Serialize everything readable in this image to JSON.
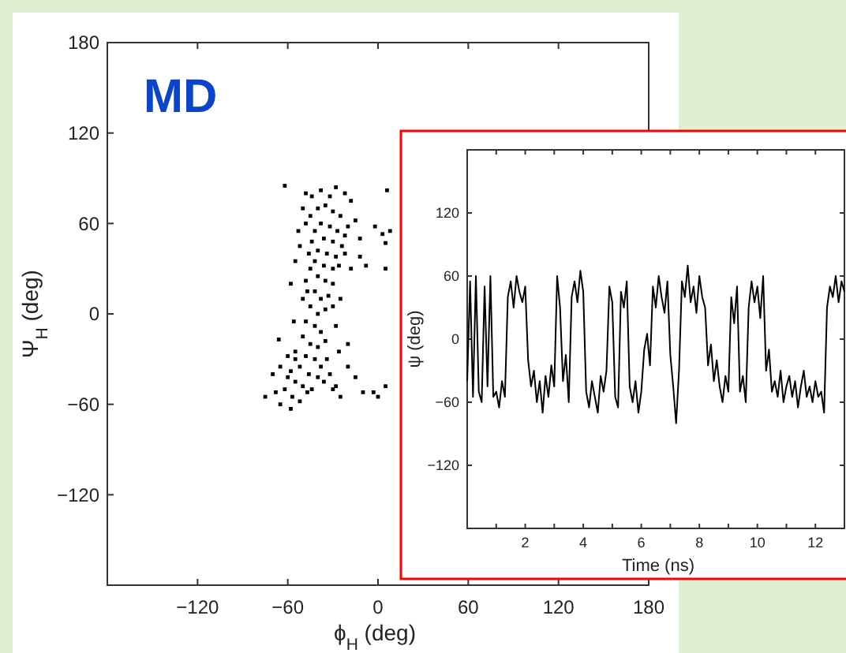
{
  "chart_data": [
    {
      "type": "scatter",
      "annotations": [
        "MD"
      ],
      "xlabel": "ϕ$_{H}$ (deg)",
      "ylabel": "Ψ$_{H}$ (deg)",
      "color": "#000000",
      "marker": "square",
      "xlim": [
        -180,
        180
      ],
      "ylim": [
        -180,
        180
      ],
      "xticks": [
        -120,
        -60,
        0,
        60,
        120,
        180
      ],
      "yticks": [
        -120,
        -60,
        0,
        60,
        120,
        180
      ],
      "x": [
        -40,
        -35,
        -30,
        -25,
        -45,
        -38,
        -32,
        -27,
        -22,
        -42,
        -36,
        -30,
        -24,
        -20,
        -44,
        -40,
        -34,
        -28,
        -22,
        -46,
        -42,
        -36,
        -30,
        -26,
        -45,
        -40,
        -35,
        -30,
        -48,
        -42,
        -38,
        -33,
        -50,
        -45,
        -40,
        -35,
        -48,
        -42,
        -38,
        -50,
        -45,
        -40,
        -35,
        -55,
        -48,
        -42,
        -38,
        -52,
        -58,
        -46,
        -40,
        -60,
        -55,
        -50,
        -44,
        -62,
        -57,
        -52,
        -47,
        -36,
        -34,
        -32,
        -30,
        -65,
        -70,
        -68,
        -28,
        -25,
        -15,
        -20,
        -62,
        -48,
        -38,
        -28,
        -15,
        -12,
        -12,
        -18,
        -8,
        -48,
        -52,
        -55,
        -58,
        -56,
        -66,
        -75,
        -65,
        -58,
        -10,
        -3,
        5,
        0,
        6,
        -2,
        3,
        5,
        8,
        5,
        -18,
        -22,
        -32,
        -44,
        -50,
        -53,
        -47,
        -28,
        -30,
        -25,
        -20,
        -26,
        -55,
        -60
      ],
      "values": [
        70,
        72,
        68,
        65,
        65,
        60,
        58,
        55,
        52,
        55,
        50,
        48,
        45,
        58,
        48,
        42,
        40,
        38,
        40,
        40,
        35,
        32,
        30,
        32,
        30,
        25,
        22,
        20,
        22,
        15,
        10,
        12,
        10,
        5,
        0,
        3,
        -5,
        -8,
        -12,
        -15,
        -20,
        -22,
        -18,
        -25,
        -28,
        -30,
        -35,
        -35,
        -38,
        -40,
        -42,
        -42,
        -45,
        -48,
        -50,
        -50,
        -55,
        -58,
        -52,
        -45,
        -30,
        -40,
        -50,
        -35,
        -40,
        -52,
        -48,
        -55,
        -42,
        -35,
        85,
        80,
        82,
        84,
        62,
        50,
        38,
        30,
        32,
        60,
        45,
        35,
        20,
        -5,
        -17,
        -55,
        -60,
        -63,
        -52,
        -52,
        -48,
        -55,
        82,
        58,
        53,
        47,
        55,
        30,
        75,
        80,
        78,
        78,
        70,
        55,
        15,
        -8,
        5,
        10,
        -20,
        -25,
        -30,
        -28
      ]
    },
    {
      "type": "line",
      "xlabel": "Time (ns)",
      "ylabel": "ψ (deg)",
      "color": "#000000",
      "xlim": [
        0,
        13
      ],
      "ylim": [
        -180,
        180
      ],
      "yticks": [
        -120,
        -60,
        0,
        60,
        120
      ],
      "xticks": [
        {
          "value": 1,
          "label": null
        },
        2,
        {
          "value": 3,
          "label": null
        },
        4,
        {
          "value": 5,
          "label": null
        },
        6,
        {
          "value": 7,
          "label": null
        },
        8,
        {
          "value": 9,
          "label": null
        },
        10,
        {
          "value": 11,
          "label": null
        },
        12
      ],
      "x": [
        0,
        0.1,
        0.2,
        0.3,
        0.4,
        0.5,
        0.6,
        0.7,
        0.8,
        0.9,
        1,
        1.1,
        1.2,
        1.3,
        1.4,
        1.5,
        1.6,
        1.7,
        1.8,
        1.9,
        2,
        2.1,
        2.2,
        2.3,
        2.4,
        2.5,
        2.6,
        2.7,
        2.8,
        2.9,
        3,
        3.1,
        3.2,
        3.3,
        3.4,
        3.5,
        3.6,
        3.7,
        3.8,
        3.9,
        4,
        4.1,
        4.2,
        4.3,
        4.4,
        4.5,
        4.6,
        4.7,
        4.8,
        4.9,
        5,
        5.1,
        5.2,
        5.3,
        5.4,
        5.5,
        5.6,
        5.7,
        5.8,
        5.9,
        6,
        6.1,
        6.2,
        6.3,
        6.4,
        6.5,
        6.6,
        6.7,
        6.8,
        6.9,
        7,
        7.1,
        7.2,
        7.3,
        7.4,
        7.5,
        7.6,
        7.7,
        7.8,
        7.9,
        8,
        8.1,
        8.2,
        8.3,
        8.4,
        8.5,
        8.6,
        8.7,
        8.8,
        8.9,
        9,
        9.1,
        9.2,
        9.3,
        9.4,
        9.5,
        9.6,
        9.7,
        9.8,
        9.9,
        10,
        10.1,
        10.2,
        10.3,
        10.4,
        10.5,
        10.6,
        10.7,
        10.8,
        10.9,
        11,
        11.1,
        11.2,
        11.3,
        11.4,
        11.5,
        11.6,
        11.7,
        11.8,
        11.9,
        12,
        12.1,
        12.2,
        12.3,
        12.4,
        12.5,
        12.6,
        12.7,
        12.8,
        12.9,
        13
      ],
      "values": [
        -40,
        55,
        -55,
        60,
        -50,
        -60,
        50,
        -45,
        60,
        -55,
        -50,
        -65,
        -40,
        -55,
        40,
        55,
        30,
        60,
        45,
        35,
        50,
        -20,
        -45,
        -30,
        -60,
        -40,
        -70,
        -35,
        -55,
        -25,
        -45,
        60,
        30,
        -40,
        -15,
        -60,
        40,
        55,
        35,
        65,
        45,
        -50,
        -65,
        -40,
        -55,
        -70,
        -35,
        -50,
        -30,
        50,
        35,
        -55,
        -65,
        45,
        30,
        55,
        -45,
        -60,
        -40,
        -70,
        -50,
        -10,
        5,
        -25,
        50,
        30,
        60,
        40,
        25,
        55,
        -15,
        -45,
        -80,
        -30,
        55,
        40,
        70,
        35,
        50,
        25,
        60,
        40,
        30,
        -25,
        -5,
        -40,
        -20,
        -45,
        -60,
        -35,
        -50,
        40,
        15,
        50,
        -50,
        -35,
        -60,
        30,
        55,
        35,
        50,
        20,
        60,
        -30,
        -10,
        -50,
        -40,
        -55,
        -30,
        -60,
        -45,
        -35,
        -55,
        -40,
        -65,
        -45,
        -30,
        -55,
        -45,
        -60,
        -40,
        -55,
        -50,
        -70,
        30,
        50,
        40,
        60,
        35,
        55,
        45
      ]
    }
  ]
}
